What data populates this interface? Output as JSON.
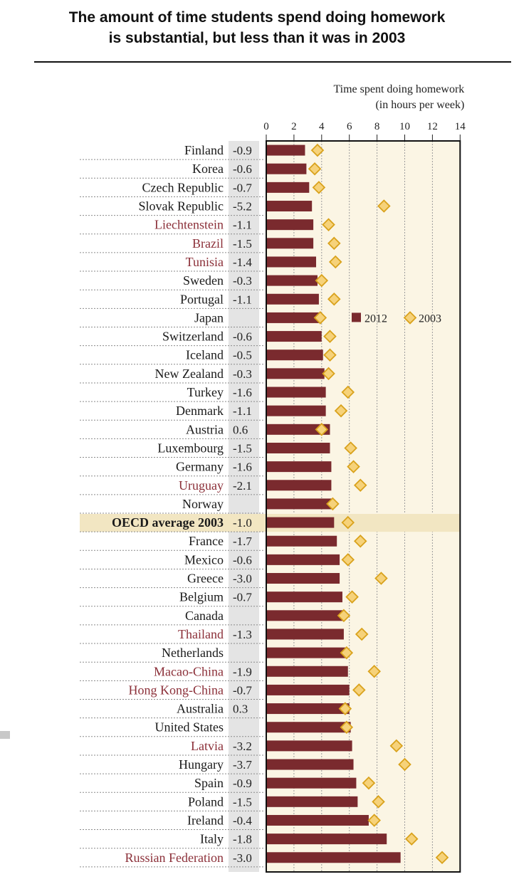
{
  "title_line1": "The amount of time students spend doing homework",
  "title_line2": "is substantial, but less than it was in 2003",
  "colors": {
    "bar_2012": "#7a2a2e",
    "marker_2003_fill": "#f6d27a",
    "marker_2003_stroke": "#d9a21c",
    "plot_bg": "#fbf5e4",
    "partner_text": "#8b2f38",
    "oecd_text": "#1a1a1a",
    "diff_bg": "#e4e4e4",
    "highlight_bg": "#f2e6c2"
  },
  "chart_data": {
    "type": "bar",
    "title": "The amount of time students spend doing homework is substantial, but less than it was in 2003",
    "xlabel_line1": "Time spent doing homework",
    "xlabel_line2": "(in hours per week)",
    "xlim": [
      0,
      14
    ],
    "x_ticks": [
      "0",
      "2",
      "4",
      "6",
      "8",
      "10",
      "12",
      "14"
    ],
    "legend": {
      "position": "top-right",
      "entries": [
        "2012",
        "2003"
      ]
    },
    "grid": true,
    "highlight_category": "OECD average 2003",
    "categories": [
      {
        "name": "Finland",
        "diff": "-0.9",
        "v2012": 2.8,
        "v2003": 3.7,
        "partner": false
      },
      {
        "name": "Korea",
        "diff": "-0.6",
        "v2012": 2.9,
        "v2003": 3.5,
        "partner": false
      },
      {
        "name": "Czech Republic",
        "diff": "-0.7",
        "v2012": 3.1,
        "v2003": 3.8,
        "partner": false
      },
      {
        "name": "Slovak Republic",
        "diff": "-5.2",
        "v2012": 3.3,
        "v2003": 8.5,
        "partner": false
      },
      {
        "name": "Liechtenstein",
        "diff": "-1.1",
        "v2012": 3.4,
        "v2003": 4.5,
        "partner": true
      },
      {
        "name": "Brazil",
        "diff": "-1.5",
        "v2012": 3.4,
        "v2003": 4.9,
        "partner": true
      },
      {
        "name": "Tunisia",
        "diff": "-1.4",
        "v2012": 3.6,
        "v2003": 5.0,
        "partner": true
      },
      {
        "name": "Sweden",
        "diff": "-0.3",
        "v2012": 3.7,
        "v2003": 4.0,
        "partner": false
      },
      {
        "name": "Portugal",
        "diff": "-1.1",
        "v2012": 3.8,
        "v2003": 4.9,
        "partner": false
      },
      {
        "name": "Japan",
        "diff": "",
        "v2012": 3.8,
        "v2003": 3.9,
        "partner": false
      },
      {
        "name": "Switzerland",
        "diff": "-0.6",
        "v2012": 4.0,
        "v2003": 4.6,
        "partner": false
      },
      {
        "name": "Iceland",
        "diff": "-0.5",
        "v2012": 4.1,
        "v2003": 4.6,
        "partner": false
      },
      {
        "name": "New Zealand",
        "diff": "-0.3",
        "v2012": 4.2,
        "v2003": 4.5,
        "partner": false
      },
      {
        "name": "Turkey",
        "diff": "-1.6",
        "v2012": 4.3,
        "v2003": 5.9,
        "partner": false
      },
      {
        "name": "Denmark",
        "diff": "-1.1",
        "v2012": 4.3,
        "v2003": 5.4,
        "partner": false
      },
      {
        "name": "Austria",
        "diff": "0.6",
        "v2012": 4.6,
        "v2003": 4.0,
        "partner": false
      },
      {
        "name": "Luxembourg",
        "diff": "-1.5",
        "v2012": 4.6,
        "v2003": 6.1,
        "partner": false
      },
      {
        "name": "Germany",
        "diff": "-1.6",
        "v2012": 4.7,
        "v2003": 6.3,
        "partner": false
      },
      {
        "name": "Uruguay",
        "diff": "-2.1",
        "v2012": 4.7,
        "v2003": 6.8,
        "partner": true
      },
      {
        "name": "Norway",
        "diff": "",
        "v2012": 4.8,
        "v2003": 4.8,
        "partner": false
      },
      {
        "name": "OECD average 2003",
        "diff": "-1.0",
        "v2012": 4.9,
        "v2003": 5.9,
        "partner": false,
        "highlight": true
      },
      {
        "name": "France",
        "diff": "-1.7",
        "v2012": 5.1,
        "v2003": 6.8,
        "partner": false
      },
      {
        "name": "Mexico",
        "diff": "-0.6",
        "v2012": 5.3,
        "v2003": 5.9,
        "partner": false
      },
      {
        "name": "Greece",
        "diff": "-3.0",
        "v2012": 5.3,
        "v2003": 8.3,
        "partner": false
      },
      {
        "name": "Belgium",
        "diff": "-0.7",
        "v2012": 5.5,
        "v2003": 6.2,
        "partner": false
      },
      {
        "name": "Canada",
        "diff": "",
        "v2012": 5.6,
        "v2003": 5.6,
        "partner": false
      },
      {
        "name": "Thailand",
        "diff": "-1.3",
        "v2012": 5.6,
        "v2003": 6.9,
        "partner": true
      },
      {
        "name": "Netherlands",
        "diff": "",
        "v2012": 5.7,
        "v2003": 5.8,
        "partner": false
      },
      {
        "name": "Macao-China",
        "diff": "-1.9",
        "v2012": 5.9,
        "v2003": 7.8,
        "partner": true
      },
      {
        "name": "Hong Kong-China",
        "diff": "-0.7",
        "v2012": 6.0,
        "v2003": 6.7,
        "partner": true
      },
      {
        "name": "Australia",
        "diff": "0.3",
        "v2012": 6.0,
        "v2003": 5.7,
        "partner": false
      },
      {
        "name": "United States",
        "diff": "",
        "v2012": 6.1,
        "v2003": 5.8,
        "partner": false
      },
      {
        "name": "Latvia",
        "diff": "-3.2",
        "v2012": 6.2,
        "v2003": 9.4,
        "partner": true
      },
      {
        "name": "Hungary",
        "diff": "-3.7",
        "v2012": 6.3,
        "v2003": 10.0,
        "partner": false
      },
      {
        "name": "Spain",
        "diff": "-0.9",
        "v2012": 6.5,
        "v2003": 7.4,
        "partner": false
      },
      {
        "name": "Poland",
        "diff": "-1.5",
        "v2012": 6.6,
        "v2003": 8.1,
        "partner": false
      },
      {
        "name": "Ireland",
        "diff": "-0.4",
        "v2012": 7.4,
        "v2003": 7.8,
        "partner": false
      },
      {
        "name": "Italy",
        "diff": "-1.8",
        "v2012": 8.7,
        "v2003": 10.5,
        "partner": false
      },
      {
        "name": "Russian Federation",
        "diff": "-3.0",
        "v2012": 9.7,
        "v2003": 12.7,
        "partner": true
      }
    ]
  }
}
